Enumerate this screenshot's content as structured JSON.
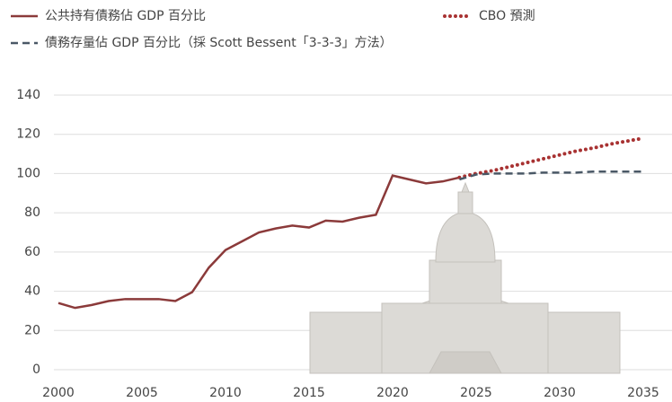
{
  "chart_data": {
    "type": "line",
    "legend": [
      "公共持有債務佔 GDP 百分比",
      "CBO 預測",
      "債務存量佔 GDP 百分比（採 Scott Bessent「3-3-3」方法）"
    ],
    "series": [
      {
        "name": "公共持有債務佔 GDP 百分比",
        "color": "#8b3a3a",
        "style": "solid",
        "x": [
          2000,
          2001,
          2002,
          2003,
          2004,
          2005,
          2006,
          2007,
          2008,
          2009,
          2010,
          2011,
          2012,
          2013,
          2014,
          2015,
          2016,
          2017,
          2018,
          2019,
          2020,
          2021,
          2022,
          2023,
          2024
        ],
        "values": [
          34,
          31.5,
          33,
          35,
          36,
          36,
          36,
          35,
          39.5,
          52,
          61,
          65.5,
          70,
          72,
          73.5,
          72.5,
          76,
          75.5,
          77.5,
          79,
          99,
          97,
          95,
          96,
          98
        ]
      },
      {
        "name": "CBO 預測",
        "color": "#a83232",
        "style": "dotted",
        "x": [
          2024,
          2025,
          2026,
          2027,
          2028,
          2029,
          2030,
          2031,
          2032,
          2033,
          2034,
          2035
        ],
        "values": [
          98,
          100,
          101.5,
          103.5,
          105.5,
          107.5,
          109.5,
          111.5,
          113,
          115,
          116.5,
          118
        ]
      },
      {
        "name": "債務存量佔 GDP 百分比（採 Scott Bessent「3-3-3」方法）",
        "color": "#4a5866",
        "style": "dashed",
        "x": [
          2024,
          2025,
          2026,
          2027,
          2028,
          2029,
          2030,
          2031,
          2032,
          2033,
          2034,
          2035
        ],
        "values": [
          97,
          99.5,
          100,
          100,
          100,
          100.5,
          100.5,
          100.5,
          101,
          101,
          101,
          101
        ]
      }
    ],
    "xlim": [
      2000,
      2035
    ],
    "xticks": [
      2000,
      2005,
      2010,
      2015,
      2020,
      2025,
      2030,
      2035
    ],
    "ylim": [
      0,
      140
    ],
    "yticks": [
      0,
      20,
      40,
      60,
      80,
      100,
      120,
      140
    ],
    "grid": true
  }
}
